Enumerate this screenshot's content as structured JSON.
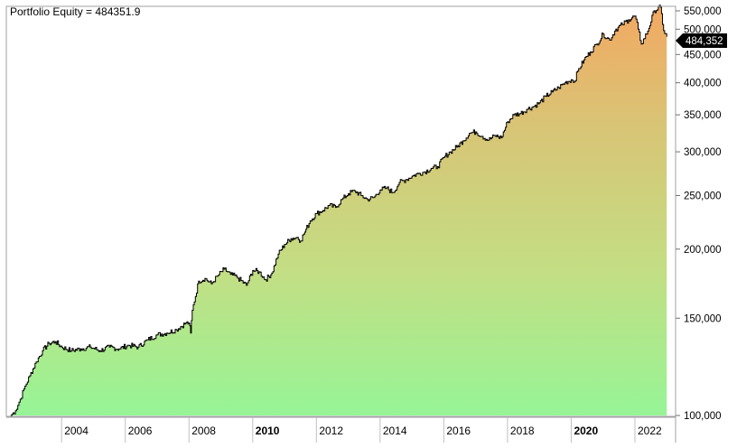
{
  "chart_data": {
    "type": "area",
    "title": "Portfolio Equity = 484351.9",
    "y_scale": "log",
    "ylim": [
      100000,
      550000
    ],
    "xlim": [
      2002.35,
      2023.05
    ],
    "grid": false,
    "last_value_label": "484,352",
    "last_value": 484352,
    "y_ticks": [
      {
        "value": 550000,
        "label": "550,000"
      },
      {
        "value": 500000,
        "label": "500,000"
      },
      {
        "value": 450000,
        "label": "450,000"
      },
      {
        "value": 400000,
        "label": "400,000"
      },
      {
        "value": 350000,
        "label": "350,000"
      },
      {
        "value": 300000,
        "label": "300,000"
      },
      {
        "value": 250000,
        "label": "250,000"
      },
      {
        "value": 200000,
        "label": "200,000"
      },
      {
        "value": 150000,
        "label": "150,000"
      },
      {
        "value": 100000,
        "label": "100,000"
      }
    ],
    "x_ticks": [
      {
        "value": 2004,
        "label": "2004",
        "bold": false
      },
      {
        "value": 2006,
        "label": "2006",
        "bold": false
      },
      {
        "value": 2008,
        "label": "2008",
        "bold": false
      },
      {
        "value": 2010,
        "label": "2010",
        "bold": true
      },
      {
        "value": 2012,
        "label": "2012",
        "bold": false
      },
      {
        "value": 2014,
        "label": "2014",
        "bold": false
      },
      {
        "value": 2016,
        "label": "2016",
        "bold": false
      },
      {
        "value": 2018,
        "label": "2018",
        "bold": false
      },
      {
        "value": 2020,
        "label": "2020",
        "bold": true
      },
      {
        "value": 2022,
        "label": "2022",
        "bold": false
      }
    ],
    "x": [
      2002.4,
      2002.55,
      2002.7,
      2002.85,
      2003.0,
      2003.2,
      2003.4,
      2003.6,
      2003.8,
      2004.0,
      2004.3,
      2004.6,
      2004.9,
      2005.2,
      2005.5,
      2005.8,
      2006.1,
      2006.4,
      2006.7,
      2007.0,
      2007.3,
      2007.6,
      2007.9,
      2008.0,
      2008.05,
      2008.1,
      2008.3,
      2008.5,
      2008.7,
      2008.9,
      2009.1,
      2009.3,
      2009.5,
      2009.8,
      2010.0,
      2010.2,
      2010.4,
      2010.6,
      2010.8,
      2011.0,
      2011.2,
      2011.4,
      2011.5,
      2011.6,
      2011.8,
      2012.0,
      2012.2,
      2012.4,
      2012.6,
      2012.8,
      2013.0,
      2013.2,
      2013.4,
      2013.6,
      2013.8,
      2014.0,
      2014.2,
      2014.4,
      2014.6,
      2014.8,
      2015.0,
      2015.2,
      2015.4,
      2015.6,
      2015.8,
      2016.0,
      2016.2,
      2016.4,
      2016.6,
      2016.8,
      2017.0,
      2017.2,
      2017.4,
      2017.6,
      2017.8,
      2018.0,
      2018.2,
      2018.4,
      2018.6,
      2018.8,
      2019.0,
      2019.2,
      2019.4,
      2019.6,
      2019.8,
      2020.0,
      2020.1,
      2020.2,
      2020.4,
      2020.6,
      2020.8,
      2021.0,
      2021.2,
      2021.4,
      2021.6,
      2021.8,
      2022.0,
      2022.1,
      2022.2,
      2022.4,
      2022.6,
      2022.8,
      2022.9,
      2023.0
    ],
    "y": [
      100000,
      102000,
      107000,
      113000,
      118000,
      125000,
      131000,
      135000,
      136000,
      133000,
      131000,
      132000,
      133000,
      131000,
      133000,
      132000,
      134000,
      133000,
      137000,
      140000,
      141000,
      143000,
      147000,
      147000,
      141000,
      155000,
      175000,
      177000,
      173000,
      179000,
      184000,
      180000,
      178000,
      172000,
      183000,
      182000,
      176000,
      181000,
      196000,
      204000,
      209000,
      210000,
      207000,
      213000,
      225000,
      232000,
      235000,
      240000,
      238000,
      246000,
      252000,
      255000,
      250000,
      246000,
      248000,
      256000,
      258000,
      253000,
      264000,
      267000,
      271000,
      274000,
      276000,
      280000,
      282000,
      293000,
      300000,
      306000,
      314000,
      324000,
      326000,
      320000,
      315000,
      321000,
      318000,
      340000,
      350000,
      352000,
      358000,
      362000,
      368000,
      378000,
      385000,
      392000,
      400000,
      405000,
      402000,
      420000,
      440000,
      455000,
      470000,
      490000,
      478000,
      500000,
      510000,
      520000,
      528000,
      500000,
      470000,
      496000,
      540000,
      548000,
      497000,
      484352
    ]
  }
}
